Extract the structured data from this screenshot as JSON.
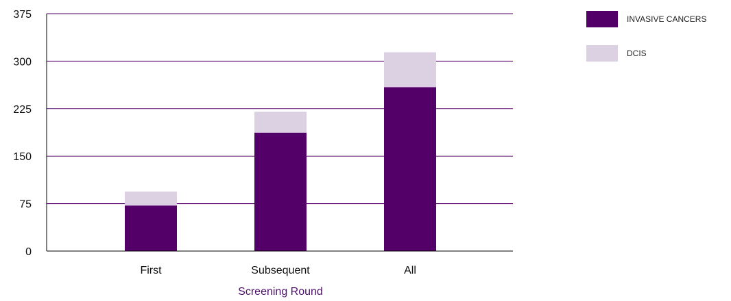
{
  "chart_data": {
    "type": "bar",
    "stacked": true,
    "categories": [
      "First",
      "Subsequent",
      "All"
    ],
    "series": [
      {
        "name": "INVASIVE CANCERS",
        "values": [
          72,
          187,
          259
        ],
        "color": "#540069"
      },
      {
        "name": "DCIS",
        "values": [
          22,
          33,
          55
        ],
        "color": "#dcd1e3"
      }
    ],
    "title": "",
    "xlabel": "Screening Round",
    "ylabel": "",
    "ylim": [
      0,
      375
    ],
    "yticks": [
      0,
      75,
      150,
      225,
      300,
      375
    ],
    "ytick_labels": [
      "0",
      "75",
      "150",
      "225",
      "300",
      "375"
    ],
    "grid": true,
    "legend_position": "top-right",
    "gridline_color": "#540069",
    "xlabel_color": "#4f0f6e"
  }
}
